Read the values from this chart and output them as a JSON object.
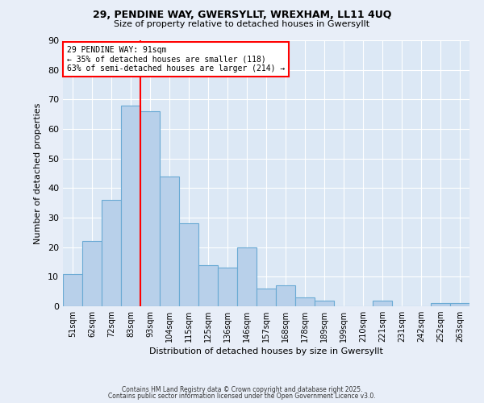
{
  "title1": "29, PENDINE WAY, GWERSYLLT, WREXHAM, LL11 4UQ",
  "title2": "Size of property relative to detached houses in Gwersyllt",
  "xlabel": "Distribution of detached houses by size in Gwersyllt",
  "ylabel": "Number of detached properties",
  "categories": [
    "51sqm",
    "62sqm",
    "72sqm",
    "83sqm",
    "93sqm",
    "104sqm",
    "115sqm",
    "125sqm",
    "136sqm",
    "146sqm",
    "157sqm",
    "168sqm",
    "178sqm",
    "189sqm",
    "199sqm",
    "210sqm",
    "221sqm",
    "231sqm",
    "242sqm",
    "252sqm",
    "263sqm"
  ],
  "values": [
    11,
    22,
    36,
    68,
    66,
    44,
    28,
    14,
    13,
    20,
    6,
    7,
    3,
    2,
    0,
    0,
    2,
    0,
    0,
    1,
    1
  ],
  "bar_color": "#b8d0ea",
  "bar_edge_color": "#6aaad4",
  "vline_color": "red",
  "annotation_text": "29 PENDINE WAY: 91sqm\n← 35% of detached houses are smaller (118)\n63% of semi-detached houses are larger (214) →",
  "annotation_box_color": "white",
  "annotation_box_edge": "red",
  "ylim": [
    0,
    90
  ],
  "yticks": [
    0,
    10,
    20,
    30,
    40,
    50,
    60,
    70,
    80,
    90
  ],
  "footnote1": "Contains HM Land Registry data © Crown copyright and database right 2025.",
  "footnote2": "Contains public sector information licensed under the Open Government Licence v3.0.",
  "background_color": "#e8eef8",
  "plot_bg_color": "#dce8f5",
  "grid_color": "#ffffff"
}
